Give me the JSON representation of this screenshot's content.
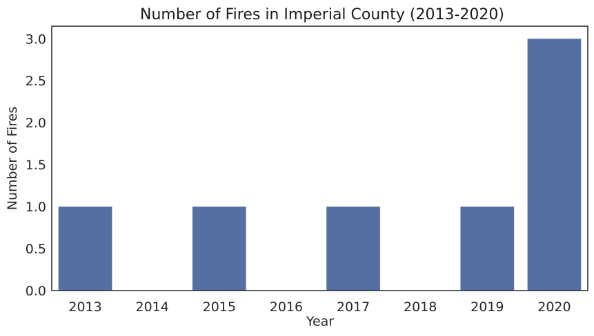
{
  "chart_data": {
    "type": "bar",
    "title": "Number of Fires in Imperial County (2013-2020)",
    "xlabel": "Year",
    "ylabel": "Number of Fires",
    "categories": [
      "2013",
      "2014",
      "2015",
      "2016",
      "2017",
      "2018",
      "2019",
      "2020"
    ],
    "values": [
      1,
      0,
      1,
      0,
      1,
      0,
      1,
      3
    ],
    "ylim": [
      0,
      3.15
    ],
    "yticks": [
      "0.0",
      "0.5",
      "1.0",
      "1.5",
      "2.0",
      "2.5",
      "3.0"
    ],
    "grid": false,
    "bar_color": "#5470a3"
  }
}
